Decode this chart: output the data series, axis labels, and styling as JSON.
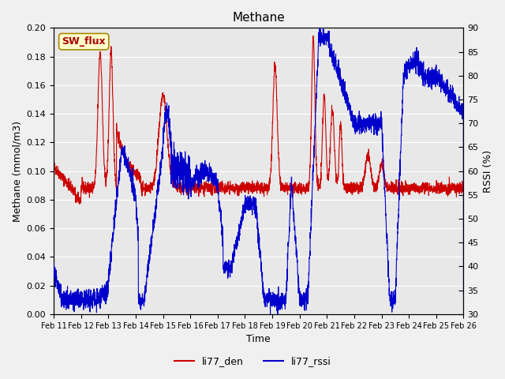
{
  "title": "Methane",
  "xlabel": "Time",
  "ylabel_left": "Methane (mmol/m3)",
  "ylabel_right": "RSSI (%)",
  "ylim_left": [
    0.0,
    0.2
  ],
  "ylim_right": [
    30,
    90
  ],
  "color_den": "#cc0000",
  "color_rssi": "#0000cc",
  "legend_den": "li77_den",
  "legend_rssi": "li77_rssi",
  "annotation_text": "SW_flux",
  "bg_color": "#e8e8e8",
  "n_days": 15,
  "xtick_labels": [
    "Feb 11",
    "Feb 12",
    "Feb 13",
    "Feb 14",
    "Feb 15",
    "Feb 16",
    "Feb 17",
    "Feb 18",
    "Feb 19",
    "Feb 20",
    "Feb 21",
    "Feb 22",
    "Feb 23",
    "Feb 24",
    "Feb 25",
    "Feb 26"
  ]
}
